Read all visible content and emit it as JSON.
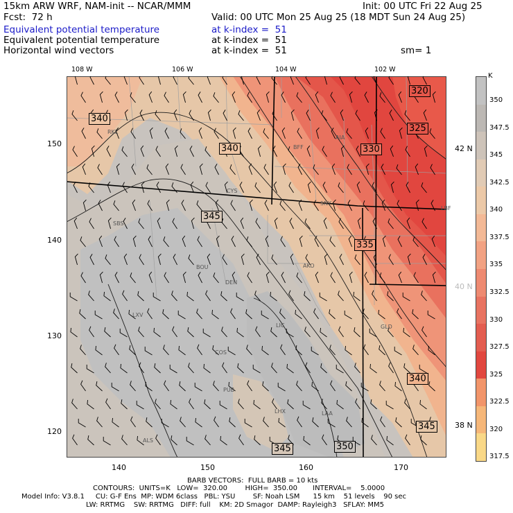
{
  "header": {
    "model": "15km ARW WRF, NAM-init -- NCAR/MMM",
    "init": "Init: 00 UTC Fri 22 Aug 25",
    "fcst": "Fcst:  72 h",
    "valid": "Valid: 00 UTC Mon 25 Aug 25 (18 MDT Sun 24 Aug 25)",
    "field1": "Equivalent potential temperature",
    "field1_level": "at k-index =  51",
    "field2": "Equivalent potential temperature",
    "field2_level": "at k-index =  51",
    "field3": "Horizontal wind vectors",
    "field3_level": "at k-index =  51",
    "smooth": "sm= 1"
  },
  "map": {
    "top_lon_labels": [
      "108 W",
      "106 W",
      "104 W",
      "102 W"
    ],
    "bottom_x_labels": [
      "140",
      "150",
      "160",
      "170"
    ],
    "left_y_labels": [
      "150",
      "140",
      "130",
      "120"
    ],
    "right_lat_labels": [
      "42 N",
      "40 N",
      "38 N"
    ],
    "cities": [
      "RKL",
      "BFF",
      "AIA",
      "CYS",
      "SNY",
      "LBF",
      "SBS",
      "BOU",
      "DEN",
      "AKO",
      "LXV",
      "LIC",
      "GLD",
      "COS",
      "PUB",
      "LHX",
      "LAA",
      "ALS"
    ],
    "contour_labels": [
      "340",
      "340",
      "345",
      "335",
      "330",
      "325",
      "320",
      "340",
      "345",
      "345",
      "350"
    ],
    "colors": {
      "c350": "#c0c0c0",
      "c345": "#cbc4bc",
      "c340": "#e6c7a8",
      "c3375": "#f1b48e",
      "c335": "#ef9478",
      "c3325": "#e9715e",
      "c330": "#e4564a",
      "c3275": "#e1463f"
    }
  },
  "colorbar": {
    "unit": "K",
    "ticks": [
      "350",
      "347.5",
      "345",
      "342.5",
      "340",
      "337.5",
      "335",
      "332.5",
      "330",
      "327.5",
      "325",
      "322.5",
      "320",
      "317.5"
    ],
    "colors": [
      "#c2c2c2",
      "#bcb8b4",
      "#cdc3b9",
      "#e1cbb5",
      "#ecc9a8",
      "#f3b996",
      "#f2a283",
      "#ee8a71",
      "#e87361",
      "#e35d50",
      "#e1473f",
      "#f2956a",
      "#f6b779",
      "#f9d887"
    ]
  },
  "footer": {
    "barb": "BARB VECTORS:  FULL BARB = 10 kts",
    "contours": "CONTOURS:  UNITS=K   LOW=  320.00        HIGH=  350.00       INTERVAL=    5.0000",
    "model_info": "Model Info: V3.8.1     CU: G-F Ens  MP: WDM 6class   PBL: YSU        SF: Noah LSM      15 km    51 levels    90 sec",
    "model_info2": "LW: RRTMG    SW: RRTMG   DIFF: full    KM: 2D Smagor  DAMP: Rayleigh3   SFLAY: MM5"
  }
}
